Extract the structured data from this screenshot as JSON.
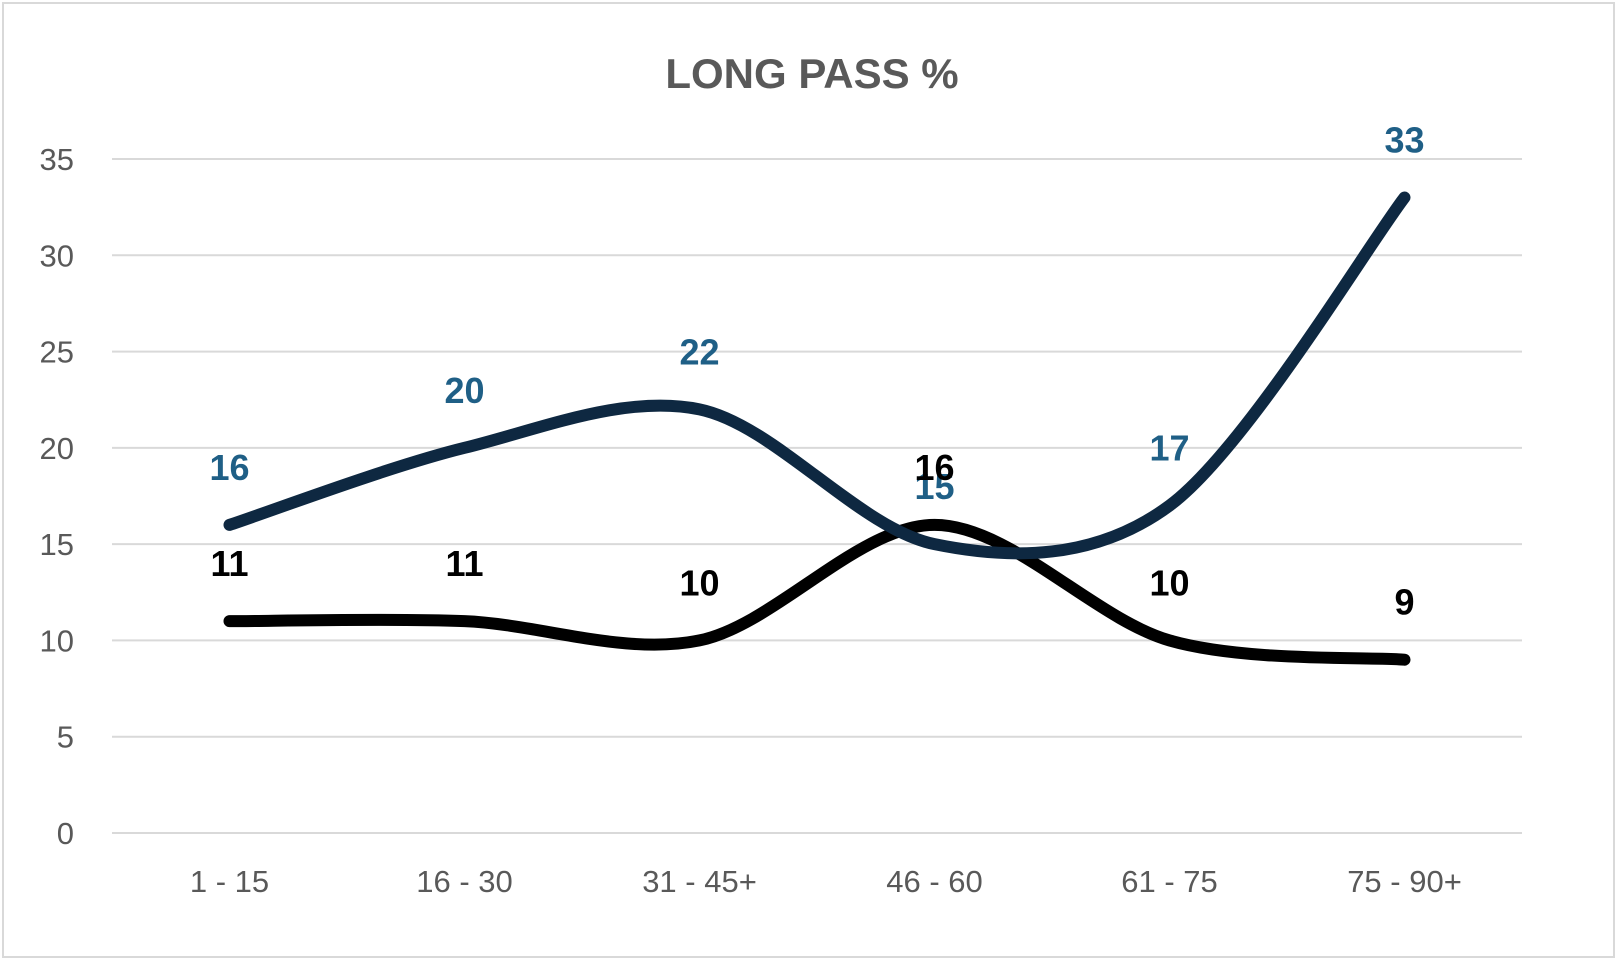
{
  "chart_data": {
    "type": "line",
    "title": "LONG PASS %",
    "xlabel": "",
    "ylabel": "",
    "categories": [
      "1 - 15",
      "16 - 30",
      "31 - 45+",
      "46 - 60",
      "61 - 75",
      "75 - 90+"
    ],
    "ylim": [
      0,
      35
    ],
    "yticks": [
      0,
      5,
      10,
      15,
      20,
      25,
      30,
      35
    ],
    "grid": true,
    "legend": "none",
    "smooth": true,
    "series": [
      {
        "values": [
          16,
          20,
          22,
          15,
          17,
          33
        ],
        "color": "#0e2841",
        "label_color": "#1f5f86"
      },
      {
        "values": [
          11,
          11,
          10,
          16,
          10,
          9
        ],
        "color": "#000000",
        "label_color": "#000000"
      }
    ]
  }
}
